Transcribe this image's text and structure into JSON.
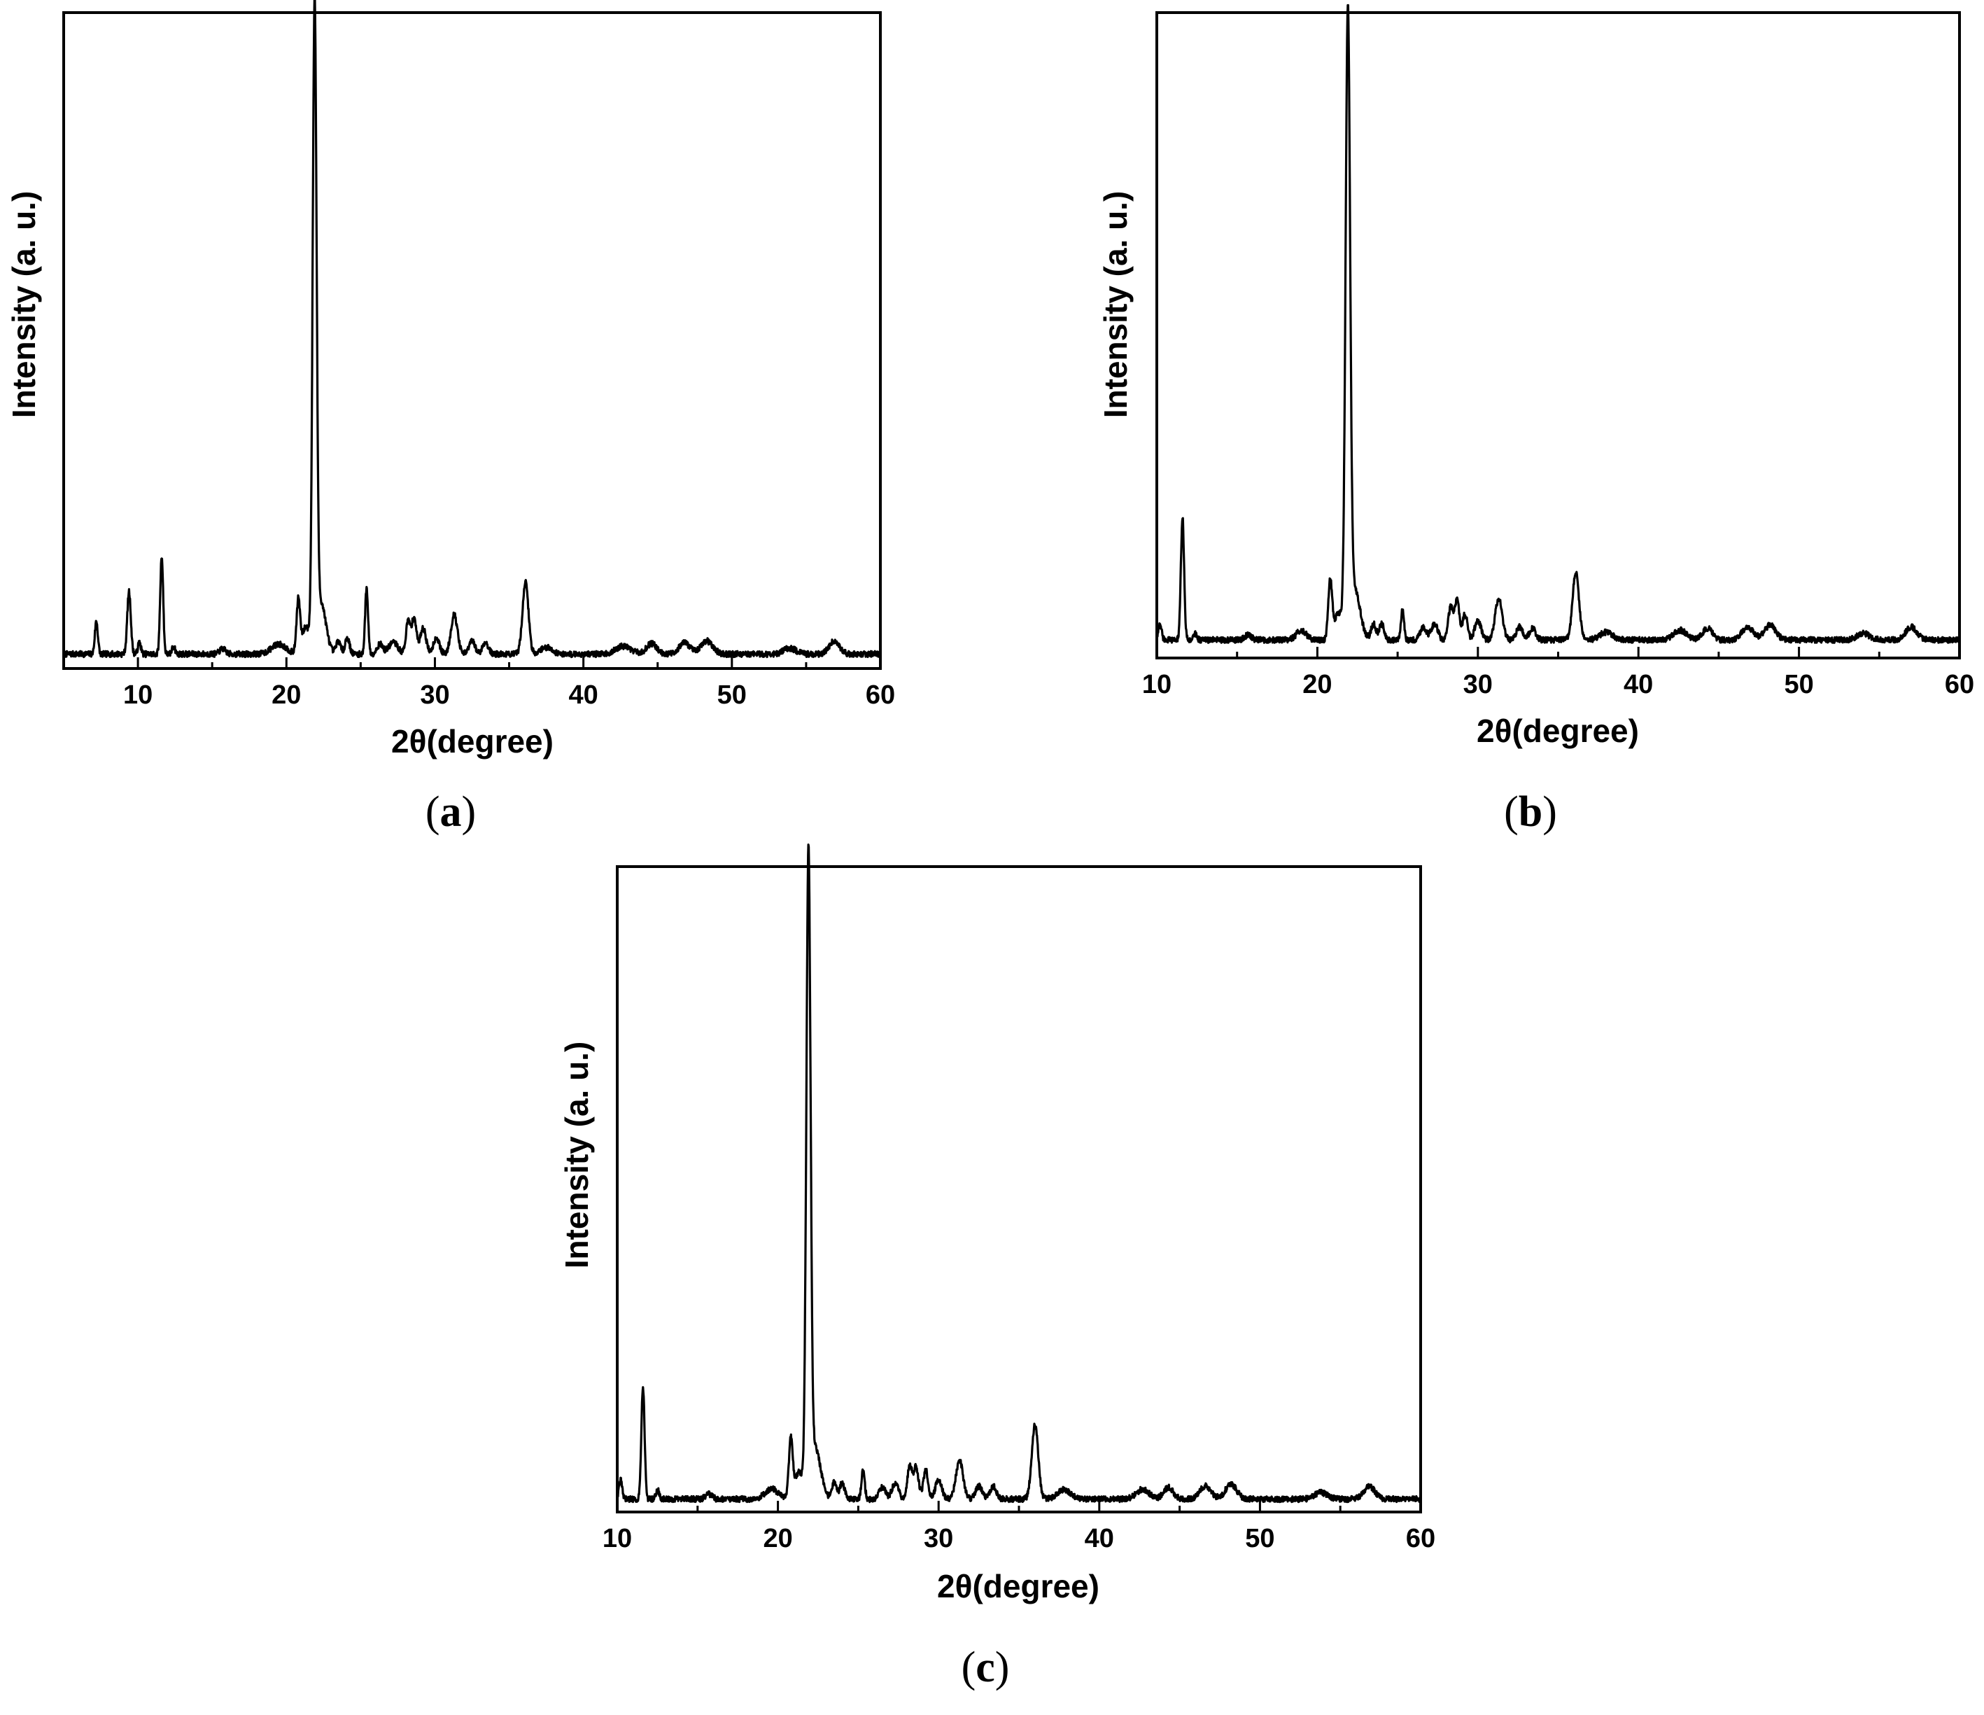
{
  "chart_data": [
    {
      "type": "line",
      "panel": "(a)",
      "panel_letter": "a",
      "xlabel": "2θ(degree)",
      "ylabel": "Intensity (a. u.)",
      "xlim": [
        5,
        60
      ],
      "ylim": [
        0,
        100
      ],
      "xticks": [
        10,
        20,
        30,
        40,
        50,
        60
      ],
      "grid": false,
      "baseline": 2.2,
      "peaks": [
        {
          "x": 7.2,
          "h": 5,
          "w": 0.1
        },
        {
          "x": 9.4,
          "h": 9.5,
          "w": 0.12
        },
        {
          "x": 10.1,
          "h": 1.8,
          "w": 0.1
        },
        {
          "x": 11.6,
          "h": 15,
          "w": 0.1
        },
        {
          "x": 12.4,
          "h": 1.2,
          "w": 0.1
        },
        {
          "x": 15.7,
          "h": 0.8,
          "w": 0.2
        },
        {
          "x": 19.5,
          "h": 1.5,
          "w": 0.5
        },
        {
          "x": 20.8,
          "h": 8,
          "w": 0.12
        },
        {
          "x": 21.3,
          "h": 4,
          "w": 0.25
        },
        {
          "x": 21.9,
          "h": 96,
          "w": 0.13
        },
        {
          "x": 22.3,
          "h": 8,
          "w": 0.35
        },
        {
          "x": 23.5,
          "h": 2,
          "w": 0.15
        },
        {
          "x": 24.1,
          "h": 2.5,
          "w": 0.15
        },
        {
          "x": 25.4,
          "h": 10,
          "w": 0.1
        },
        {
          "x": 26.3,
          "h": 1.5,
          "w": 0.2
        },
        {
          "x": 27.2,
          "h": 1.8,
          "w": 0.3
        },
        {
          "x": 28.2,
          "h": 5,
          "w": 0.15
        },
        {
          "x": 28.6,
          "h": 5.5,
          "w": 0.15
        },
        {
          "x": 29.2,
          "h": 4,
          "w": 0.2
        },
        {
          "x": 30.1,
          "h": 2.5,
          "w": 0.2
        },
        {
          "x": 31.3,
          "h": 6,
          "w": 0.22
        },
        {
          "x": 32.5,
          "h": 2,
          "w": 0.2
        },
        {
          "x": 33.4,
          "h": 1.8,
          "w": 0.2
        },
        {
          "x": 36.1,
          "h": 11,
          "w": 0.2
        },
        {
          "x": 37.5,
          "h": 1,
          "w": 0.4
        },
        {
          "x": 42.7,
          "h": 1.2,
          "w": 0.5
        },
        {
          "x": 44.6,
          "h": 1.6,
          "w": 0.35
        },
        {
          "x": 46.8,
          "h": 1.8,
          "w": 0.35
        },
        {
          "x": 48.3,
          "h": 2,
          "w": 0.4
        },
        {
          "x": 53.9,
          "h": 0.9,
          "w": 0.4
        },
        {
          "x": 56.9,
          "h": 2,
          "w": 0.35
        }
      ]
    },
    {
      "type": "line",
      "panel": "(b)",
      "panel_letter": "b",
      "xlabel": "2θ(degree)",
      "ylabel": "Intensity (a. u.)",
      "xlim": [
        10,
        60
      ],
      "ylim": [
        0,
        100
      ],
      "xticks": [
        10,
        20,
        30,
        40,
        50,
        60
      ],
      "grid": false,
      "baseline": 2.8,
      "peaks": [
        {
          "x": 10.2,
          "h": 2.5,
          "w": 0.1
        },
        {
          "x": 11.6,
          "h": 19,
          "w": 0.1
        },
        {
          "x": 12.4,
          "h": 1,
          "w": 0.1
        },
        {
          "x": 15.7,
          "h": 0.8,
          "w": 0.2
        },
        {
          "x": 19.0,
          "h": 1.5,
          "w": 0.3
        },
        {
          "x": 20.8,
          "h": 9,
          "w": 0.12
        },
        {
          "x": 21.3,
          "h": 4,
          "w": 0.25
        },
        {
          "x": 21.9,
          "h": 94,
          "w": 0.14
        },
        {
          "x": 22.3,
          "h": 8,
          "w": 0.35
        },
        {
          "x": 23.5,
          "h": 2.5,
          "w": 0.15
        },
        {
          "x": 24.0,
          "h": 2.5,
          "w": 0.15
        },
        {
          "x": 25.3,
          "h": 4.5,
          "w": 0.1
        },
        {
          "x": 26.6,
          "h": 2,
          "w": 0.2
        },
        {
          "x": 27.3,
          "h": 2.5,
          "w": 0.2
        },
        {
          "x": 28.3,
          "h": 5,
          "w": 0.15
        },
        {
          "x": 28.7,
          "h": 6,
          "w": 0.15
        },
        {
          "x": 29.2,
          "h": 4,
          "w": 0.15
        },
        {
          "x": 30.0,
          "h": 3,
          "w": 0.2
        },
        {
          "x": 31.3,
          "h": 6.5,
          "w": 0.22
        },
        {
          "x": 32.6,
          "h": 2,
          "w": 0.2
        },
        {
          "x": 33.4,
          "h": 1.8,
          "w": 0.2
        },
        {
          "x": 36.1,
          "h": 10.5,
          "w": 0.2
        },
        {
          "x": 38.0,
          "h": 1.2,
          "w": 0.4
        },
        {
          "x": 42.6,
          "h": 1.5,
          "w": 0.4
        },
        {
          "x": 44.3,
          "h": 1.8,
          "w": 0.3
        },
        {
          "x": 46.8,
          "h": 2,
          "w": 0.35
        },
        {
          "x": 48.2,
          "h": 2.3,
          "w": 0.35
        },
        {
          "x": 54.0,
          "h": 1,
          "w": 0.4
        },
        {
          "x": 57.0,
          "h": 2,
          "w": 0.35
        }
      ]
    },
    {
      "type": "line",
      "panel": "(c)",
      "panel_letter": "c",
      "xlabel": "2θ(degree)",
      "ylabel": "Intensity (a. u.)",
      "xlim": [
        10,
        60
      ],
      "ylim": [
        0,
        100
      ],
      "xticks": [
        10,
        20,
        30,
        40,
        50,
        60
      ],
      "grid": false,
      "baseline": 2.0,
      "peaks": [
        {
          "x": 10.2,
          "h": 3,
          "w": 0.1
        },
        {
          "x": 11.6,
          "h": 17.5,
          "w": 0.1
        },
        {
          "x": 12.5,
          "h": 1.5,
          "w": 0.1
        },
        {
          "x": 15.7,
          "h": 0.8,
          "w": 0.2
        },
        {
          "x": 19.6,
          "h": 1.6,
          "w": 0.4
        },
        {
          "x": 20.8,
          "h": 9,
          "w": 0.12
        },
        {
          "x": 21.3,
          "h": 4,
          "w": 0.25
        },
        {
          "x": 21.9,
          "h": 97,
          "w": 0.13
        },
        {
          "x": 22.3,
          "h": 8,
          "w": 0.35
        },
        {
          "x": 23.5,
          "h": 2.5,
          "w": 0.15
        },
        {
          "x": 24.0,
          "h": 2.5,
          "w": 0.15
        },
        {
          "x": 25.3,
          "h": 4.5,
          "w": 0.1
        },
        {
          "x": 26.5,
          "h": 1.8,
          "w": 0.2
        },
        {
          "x": 27.3,
          "h": 2.5,
          "w": 0.2
        },
        {
          "x": 28.2,
          "h": 5,
          "w": 0.15
        },
        {
          "x": 28.6,
          "h": 5,
          "w": 0.15
        },
        {
          "x": 29.2,
          "h": 4.5,
          "w": 0.15
        },
        {
          "x": 30.0,
          "h": 3,
          "w": 0.2
        },
        {
          "x": 31.3,
          "h": 6,
          "w": 0.22
        },
        {
          "x": 32.5,
          "h": 2,
          "w": 0.2
        },
        {
          "x": 33.4,
          "h": 2,
          "w": 0.2
        },
        {
          "x": 36.0,
          "h": 11.5,
          "w": 0.2
        },
        {
          "x": 37.8,
          "h": 1.5,
          "w": 0.4
        },
        {
          "x": 42.7,
          "h": 1.5,
          "w": 0.4
        },
        {
          "x": 44.3,
          "h": 1.8,
          "w": 0.3
        },
        {
          "x": 46.6,
          "h": 2,
          "w": 0.35
        },
        {
          "x": 48.2,
          "h": 2.3,
          "w": 0.35
        },
        {
          "x": 53.8,
          "h": 1,
          "w": 0.4
        },
        {
          "x": 56.8,
          "h": 2,
          "w": 0.35
        }
      ]
    }
  ]
}
